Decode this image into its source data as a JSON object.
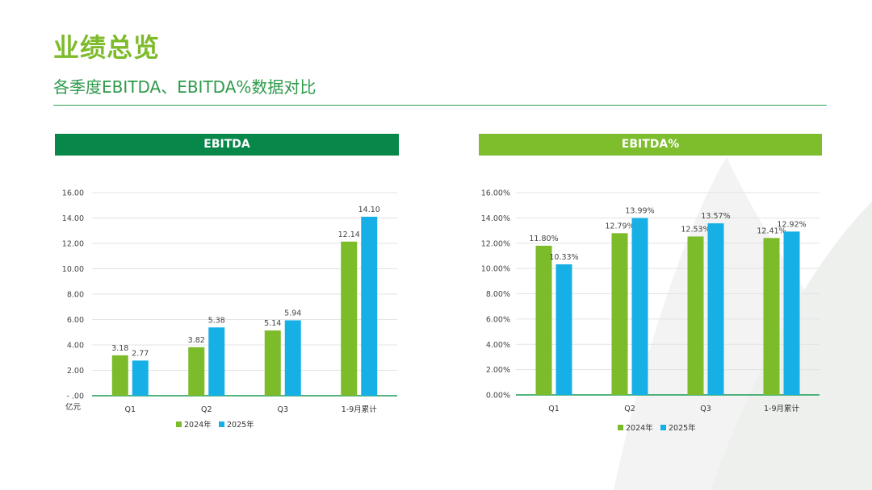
{
  "page": {
    "title": "业绩总览",
    "subtitle": "各季度EBITDA、EBITDA%数据对比"
  },
  "colors": {
    "series_2024": "#7cbb2a",
    "series_2025": "#17b0e6",
    "header_left": "#07874a",
    "header_right": "#7ebd2c"
  },
  "chart_data": [
    {
      "type": "bar",
      "title": "EBITDA",
      "unit_label": "亿元",
      "categories": [
        "Q1",
        "Q2",
        "Q3",
        "1-9月累计"
      ],
      "series": [
        {
          "name": "2024年",
          "values": [
            3.18,
            3.82,
            5.14,
            12.14
          ]
        },
        {
          "name": "2025年",
          "values": [
            2.77,
            5.38,
            5.94,
            14.1
          ]
        }
      ],
      "data_labels": [
        [
          "3.18",
          "3.82",
          "5.14",
          "12.14"
        ],
        [
          "2.77",
          "5.38",
          "5.94",
          "14.10"
        ]
      ],
      "y_ticks": [
        "-  .00",
        "2.00",
        "4.00",
        "6.00",
        "8.00",
        "10.00",
        "12.00",
        "14.00",
        "16.00"
      ],
      "ylim": [
        0,
        16
      ],
      "grid": true,
      "legend_position": "bottom"
    },
    {
      "type": "bar",
      "title": "EBITDA%",
      "categories": [
        "Q1",
        "Q2",
        "Q3",
        "1-9月累计"
      ],
      "series": [
        {
          "name": "2024年",
          "values": [
            11.8,
            12.79,
            12.53,
            12.41
          ]
        },
        {
          "name": "2025年",
          "values": [
            10.33,
            13.99,
            13.57,
            12.92
          ]
        }
      ],
      "data_labels": [
        [
          "11.80%",
          "12.79%",
          "12.53%",
          "12.41%"
        ],
        [
          "10.33%",
          "13.99%",
          "13.57%",
          "12.92%"
        ]
      ],
      "y_ticks": [
        "0.00%",
        "2.00%",
        "4.00%",
        "6.00%",
        "8.00%",
        "10.00%",
        "12.00%",
        "14.00%",
        "16.00%"
      ],
      "ylim": [
        0,
        16
      ],
      "grid": true,
      "legend_position": "bottom"
    }
  ]
}
